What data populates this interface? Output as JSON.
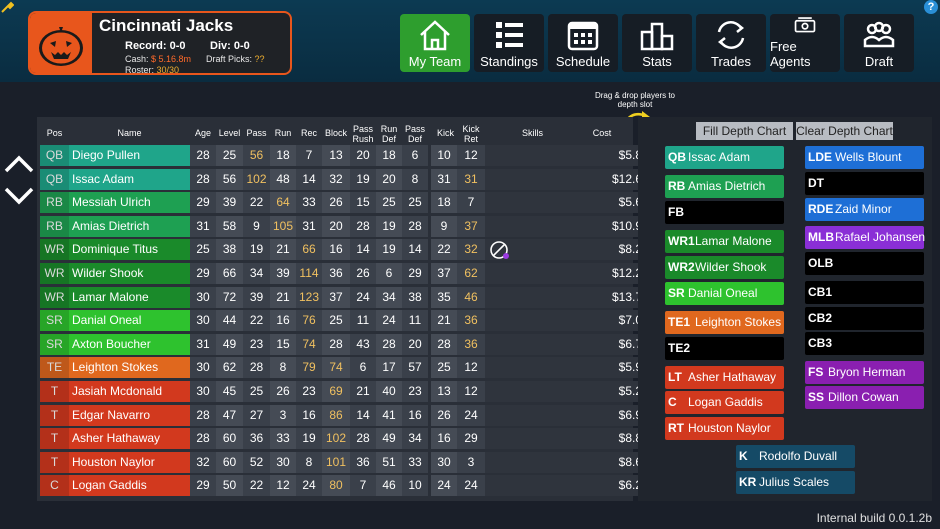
{
  "team": {
    "name": "Cincinnati Jacks",
    "record_label": "Record:",
    "record": "0-0",
    "div_label": "Div:",
    "div": "0-0",
    "cash_label": "Cash:",
    "cash": "$ 5.16.8m",
    "draft_label": "Draft Picks:",
    "draft": "??",
    "roster_label": "Roster:",
    "roster": "30/30"
  },
  "nav": [
    {
      "label": "My Team",
      "icon": "home-icon",
      "active": true
    },
    {
      "label": "Standings",
      "icon": "list-icon"
    },
    {
      "label": "Schedule",
      "icon": "calendar-icon"
    },
    {
      "label": "Stats",
      "icon": "podium-icon"
    },
    {
      "label": "Trades",
      "icon": "swap-icon"
    },
    {
      "label": "Free Agents",
      "icon": "cash-icon"
    },
    {
      "label": "Draft",
      "icon": "people-icon"
    }
  ],
  "help_label": "?",
  "drag_hint": "Drag & drop players to depth slot",
  "columns": [
    "Pos",
    "Name",
    "Age",
    "Level",
    "Pass",
    "Run",
    "Rec",
    "Block",
    "Pass Rush",
    "Run Def",
    "Pass Def",
    "Kick",
    "Kick Ret",
    "Skills",
    "Cost"
  ],
  "players": [
    {
      "pos": "QB",
      "name": "Diego Pullen",
      "age": "28",
      "level": "25",
      "pass": "56",
      "run": "18",
      "rec": "7",
      "block": "13",
      "prush": "20",
      "rdef": "18",
      "pdef": "6",
      "kick": "10",
      "kret": "12",
      "cost": "$5.8m",
      "color": "#1fa58a"
    },
    {
      "pos": "QB",
      "name": "Issac Adam",
      "age": "28",
      "level": "56",
      "pass": "102",
      "run": "48",
      "rec": "14",
      "block": "32",
      "prush": "19",
      "rdef": "20",
      "pdef": "8",
      "kick": "31",
      "kret": "31",
      "cost": "$12.6m",
      "color": "#1fa58a"
    },
    {
      "pos": "RB",
      "name": "Messiah Ulrich",
      "age": "29",
      "level": "39",
      "pass": "22",
      "run": "64",
      "rec": "33",
      "block": "26",
      "prush": "15",
      "rdef": "25",
      "pdef": "25",
      "kick": "18",
      "kret": "7",
      "cost": "$5.6m",
      "color": "#1ea052"
    },
    {
      "pos": "RB",
      "name": "Amias Dietrich",
      "age": "31",
      "level": "58",
      "pass": "9",
      "run": "105",
      "rec": "31",
      "block": "20",
      "prush": "28",
      "rdef": "19",
      "pdef": "28",
      "kick": "9",
      "kret": "37",
      "cost": "$10.9m",
      "color": "#1ea052"
    },
    {
      "pos": "WR",
      "name": "Dominique Titus",
      "age": "25",
      "level": "38",
      "pass": "19",
      "run": "21",
      "rec": "66",
      "block": "16",
      "prush": "14",
      "rdef": "19",
      "pdef": "14",
      "kick": "22",
      "kret": "32",
      "cost": "$8.2m",
      "color": "#1a8a2a"
    },
    {
      "pos": "WR",
      "name": "Wilder Shook",
      "age": "29",
      "level": "66",
      "pass": "34",
      "run": "39",
      "rec": "114",
      "block": "36",
      "prush": "26",
      "rdef": "6",
      "pdef": "29",
      "kick": "37",
      "kret": "62",
      "cost": "$12.2m",
      "color": "#1a8a2a"
    },
    {
      "pos": "WR",
      "name": "Lamar Malone",
      "age": "30",
      "level": "72",
      "pass": "39",
      "run": "21",
      "rec": "123",
      "block": "37",
      "prush": "24",
      "rdef": "34",
      "pdef": "38",
      "kick": "35",
      "kret": "46",
      "cost": "$13.7m",
      "color": "#1a8a2a"
    },
    {
      "pos": "SR",
      "name": "Danial Oneal",
      "age": "30",
      "level": "44",
      "pass": "22",
      "run": "16",
      "rec": "76",
      "block": "25",
      "prush": "11",
      "rdef": "24",
      "pdef": "11",
      "kick": "21",
      "kret": "36",
      "cost": "$7.0m",
      "color": "#2ec22e"
    },
    {
      "pos": "SR",
      "name": "Axton Boucher",
      "age": "31",
      "level": "49",
      "pass": "23",
      "run": "15",
      "rec": "74",
      "block": "28",
      "prush": "43",
      "rdef": "28",
      "pdef": "20",
      "kick": "28",
      "kret": "36",
      "cost": "$6.7m",
      "color": "#2ec22e"
    },
    {
      "pos": "TE",
      "name": "Leighton Stokes",
      "age": "30",
      "level": "62",
      "pass": "28",
      "run": "8",
      "rec": "79",
      "block": "74",
      "prush": "6",
      "rdef": "17",
      "pdef": "57",
      "kick": "25",
      "kret": "12",
      "cost": "$5.9m",
      "color": "#e0681e"
    },
    {
      "pos": "T",
      "name": "Jasiah Mcdonald",
      "age": "30",
      "level": "45",
      "pass": "25",
      "run": "26",
      "rec": "23",
      "block": "69",
      "prush": "21",
      "rdef": "40",
      "pdef": "23",
      "kick": "13",
      "kret": "12",
      "cost": "$5.2m",
      "color": "#d2391e"
    },
    {
      "pos": "T",
      "name": "Edgar Navarro",
      "age": "28",
      "level": "47",
      "pass": "27",
      "run": "3",
      "rec": "16",
      "block": "86",
      "prush": "14",
      "rdef": "41",
      "pdef": "16",
      "kick": "26",
      "kret": "24",
      "cost": "$6.9m",
      "color": "#d2391e"
    },
    {
      "pos": "T",
      "name": "Asher Hathaway",
      "age": "28",
      "level": "60",
      "pass": "36",
      "run": "33",
      "rec": "19",
      "block": "102",
      "prush": "28",
      "rdef": "49",
      "pdef": "34",
      "kick": "16",
      "kret": "29",
      "cost": "$8.8m",
      "color": "#d2391e"
    },
    {
      "pos": "T",
      "name": "Houston Naylor",
      "age": "32",
      "level": "60",
      "pass": "52",
      "run": "30",
      "rec": "8",
      "block": "101",
      "prush": "36",
      "rdef": "51",
      "pdef": "33",
      "kick": "30",
      "kret": "3",
      "cost": "$8.6m",
      "color": "#d2391e"
    },
    {
      "pos": "C",
      "name": "Logan Gaddis",
      "age": "29",
      "level": "50",
      "pass": "22",
      "run": "12",
      "rec": "24",
      "block": "80",
      "prush": "7",
      "rdef": "46",
      "pdef": "10",
      "kick": "24",
      "kret": "24",
      "cost": "$6.2m",
      "color": "#d2391e"
    }
  ],
  "depth": {
    "fill_label": "Fill Depth Chart",
    "clear_label": "Clear Depth Chart",
    "offense": [
      {
        "pos": "QB",
        "name": "Issac Adam",
        "color": "#1fa58a"
      },
      {
        "pos": "RB",
        "name": "Amias Dietrich",
        "color": "#1ea052"
      },
      {
        "pos": "FB",
        "name": "",
        "color": "#000000"
      },
      {
        "pos": "WR1",
        "name": "Lamar Malone",
        "color": "#1a8a2a"
      },
      {
        "pos": "WR2",
        "name": "Wilder Shook",
        "color": "#1a8a2a"
      },
      {
        "pos": "SR",
        "name": "Danial Oneal",
        "color": "#2ec22e"
      },
      {
        "pos": "TE1",
        "name": "Leighton Stokes",
        "color": "#e0681e"
      },
      {
        "pos": "TE2",
        "name": "",
        "color": "#000000"
      },
      {
        "pos": "LT",
        "name": "Asher Hathaway",
        "color": "#d2391e"
      },
      {
        "pos": "C",
        "name": "Logan Gaddis",
        "color": "#d2391e"
      },
      {
        "pos": "RT",
        "name": "Houston Naylor",
        "color": "#d2391e"
      }
    ],
    "defense": [
      {
        "pos": "LDE",
        "name": "Wells Blount",
        "color": "#1e6fd6"
      },
      {
        "pos": "DT",
        "name": "",
        "color": "#000000"
      },
      {
        "pos": "RDE",
        "name": "Zaid Minor",
        "color": "#1e6fd6"
      },
      {
        "pos": "MLB",
        "name": "Rafael Johansen",
        "color": "#8a2fd6"
      },
      {
        "pos": "OLB",
        "name": "",
        "color": "#000000"
      },
      {
        "pos": "CB1",
        "name": "",
        "color": "#000000"
      },
      {
        "pos": "CB2",
        "name": "",
        "color": "#000000"
      },
      {
        "pos": "CB3",
        "name": "",
        "color": "#000000"
      },
      {
        "pos": "FS",
        "name": "Bryon Herman",
        "color": "#8a1fb0"
      },
      {
        "pos": "SS",
        "name": "Dillon Cowan",
        "color": "#8a1fb0"
      }
    ],
    "special": [
      {
        "pos": "K",
        "name": "Rodolfo Duvall",
        "color": "#154a66"
      },
      {
        "pos": "KR",
        "name": "Julius Scales",
        "color": "#154a66"
      }
    ]
  },
  "build": "Internal build 0.0.1.2b"
}
